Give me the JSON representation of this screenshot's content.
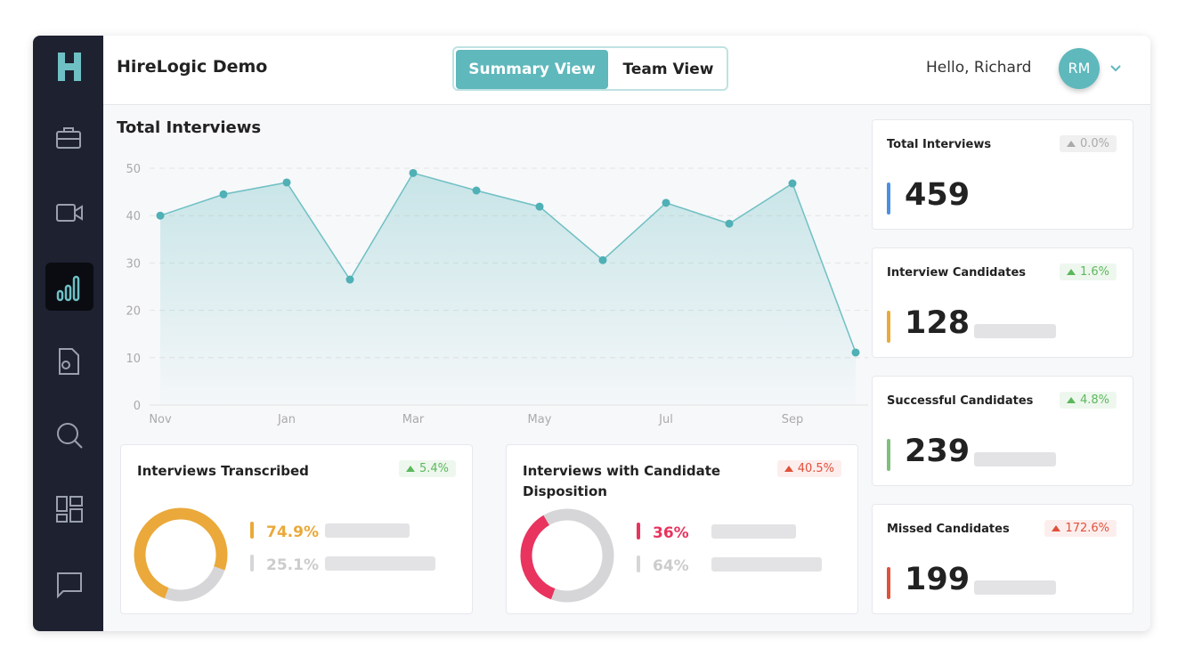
{
  "brand": "HireLogic Demo",
  "tabs": [
    "Summary View",
    "Team View"
  ],
  "greeting": "Hello, Richard",
  "avatar": "RM",
  "chart_data": {
    "type": "area",
    "title": "Total Interviews",
    "categories": [
      "Nov",
      null,
      "Jan",
      null,
      "Mar",
      null,
      "May",
      null,
      "Jul",
      null,
      "Sep",
      null
    ],
    "values": [
      40,
      44.5,
      47,
      26.5,
      49,
      45.3,
      41.9,
      30.6,
      42.7,
      38.3,
      46.8,
      11.1
    ],
    "color": "#6fc0c4",
    "ylim": [
      0,
      50
    ],
    "yticks": [
      0,
      10,
      20,
      30,
      40,
      50
    ],
    "grid": true
  },
  "donuts": [
    {
      "title": "Interviews Transcribed",
      "change": "5.4%",
      "tone": "positive",
      "values": [
        74.9,
        25.1
      ],
      "value_labels": [
        "74.9%",
        "25.1%"
      ],
      "colors": [
        "#eaa93a",
        "#d6d6d8"
      ]
    },
    {
      "title": "Interviews with Candidate Disposition",
      "change": "40.5%",
      "tone": "negative",
      "values": [
        36,
        64
      ],
      "value_labels": [
        "36%",
        "64%"
      ],
      "colors": [
        "#e8345f",
        "#d6d6d8"
      ]
    }
  ],
  "cards": [
    {
      "title": "Total Interviews",
      "change": "0.0%",
      "tone": "neutral",
      "value": 459,
      "color": "#4a90e2"
    },
    {
      "title": "Interview Candidates",
      "change": "1.6%",
      "tone": "positive",
      "value": 128,
      "color": "#eaa93a"
    },
    {
      "title": "Successful Candidates",
      "change": "4.8%",
      "tone": "positive",
      "value": 239,
      "color": "#7fbf7a"
    },
    {
      "title": "Missed Candidates",
      "change": "172.6%",
      "tone": "negative",
      "value": 199,
      "color": "#e0513a"
    }
  ]
}
